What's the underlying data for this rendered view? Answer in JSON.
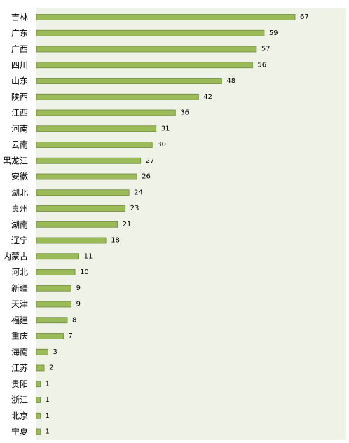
{
  "chart_data": {
    "type": "bar",
    "orientation": "horizontal",
    "categories": [
      "吉林",
      "广东",
      "广西",
      "四川",
      "山东",
      "陕西",
      "江西",
      "河南",
      "云南",
      "黑龙江",
      "安徽",
      "湖北",
      "贵州",
      "湖南",
      "辽宁",
      "内蒙古",
      "河北",
      "新疆",
      "天津",
      "福建",
      "重庆",
      "海南",
      "江苏",
      "贵阳",
      "浙江",
      "北京",
      "宁夏"
    ],
    "values": [
      67,
      59,
      57,
      56,
      48,
      42,
      36,
      31,
      30,
      27,
      26,
      24,
      23,
      21,
      18,
      11,
      10,
      9,
      9,
      8,
      7,
      3,
      2,
      1,
      1,
      1,
      1
    ],
    "value_labels": [
      "67",
      "59",
      "57",
      "56",
      "48",
      "42",
      "36",
      "31",
      "30",
      "27",
      "26",
      "24",
      "23",
      "21",
      "18",
      "11",
      "10",
      "9",
      "9",
      "8",
      "7",
      "3",
      "2",
      "1",
      "1",
      "1",
      "1"
    ],
    "xlim": [
      0,
      70
    ],
    "grid": false,
    "legend": "none",
    "colors": {
      "plot_background": "#eff2e7",
      "bar_fill": "#9bbb59",
      "bar_stroke": "#71893f",
      "axis": "#8c8c8c"
    }
  }
}
